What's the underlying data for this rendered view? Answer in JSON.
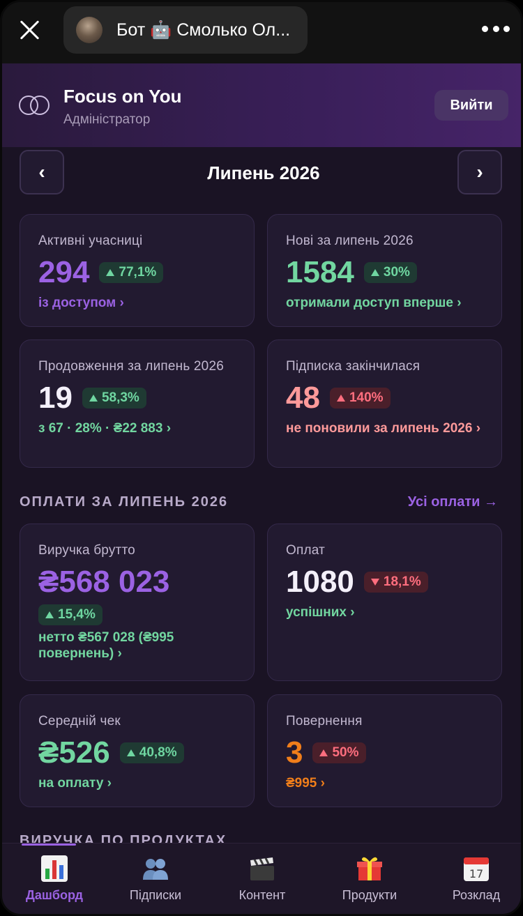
{
  "topbar": {
    "bot_title": "Бот 🤖 Смолько Ол..."
  },
  "header": {
    "brand": "Focus on You",
    "role": "Адміністратор",
    "logout_label": "Вийти"
  },
  "month_nav": {
    "prev": "‹",
    "title": "Липень 2026",
    "next": "›"
  },
  "stats": {
    "active": {
      "label": "Активні учасниці",
      "value": "294",
      "change": "77,1%",
      "sub": "із доступом ›"
    },
    "new": {
      "label": "Нові за липень 2026",
      "value": "1584",
      "change": "30%",
      "sub": "отримали доступ вперше ›"
    },
    "renewals": {
      "label": "Продовження за липень 2026",
      "value": "19",
      "change": "58,3%",
      "sub": "з 67 · 28% · ₴22 883 ›"
    },
    "expired": {
      "label": "Підписка закінчилася",
      "value": "48",
      "change": "140%",
      "sub": "не поновили за липень 2026 ›"
    }
  },
  "payments_section": {
    "title": "ОПЛАТИ ЗА ЛИПЕНЬ 2026",
    "all_link": "Усі оплати →"
  },
  "payments": {
    "revenue": {
      "label": "Виручка брутто",
      "value": "₴568 023",
      "change": "15,4%",
      "sub": "нетто ₴567 028 (₴995 повернень) ›"
    },
    "count": {
      "label": "Оплат",
      "value": "1080",
      "change": "18,1%",
      "sub": "успішних ›"
    },
    "avg": {
      "label": "Середній чек",
      "value": "₴526",
      "change": "40,8%",
      "sub": "на оплату ›"
    },
    "refunds": {
      "label": "Повернення",
      "value": "3",
      "change": "50%",
      "sub": "₴995 ›"
    }
  },
  "products_section": {
    "title": "ВИРУЧКА ПО ПРОДУКТАХ"
  },
  "tabs": [
    {
      "label": "Дашборд",
      "icon": "bar-chart-icon",
      "active": true
    },
    {
      "label": "Підписки",
      "icon": "users-icon"
    },
    {
      "label": "Контент",
      "icon": "clapperboard-icon"
    },
    {
      "label": "Продукти",
      "icon": "gift-icon"
    },
    {
      "label": "Розклад",
      "icon": "calendar-icon"
    }
  ],
  "calendar_day": "17",
  "colors": {
    "accent": "#9b62e3",
    "green": "#72d6a0",
    "red": "#ff6e7e",
    "orange": "#f07e1a",
    "background": "#1a1324"
  }
}
